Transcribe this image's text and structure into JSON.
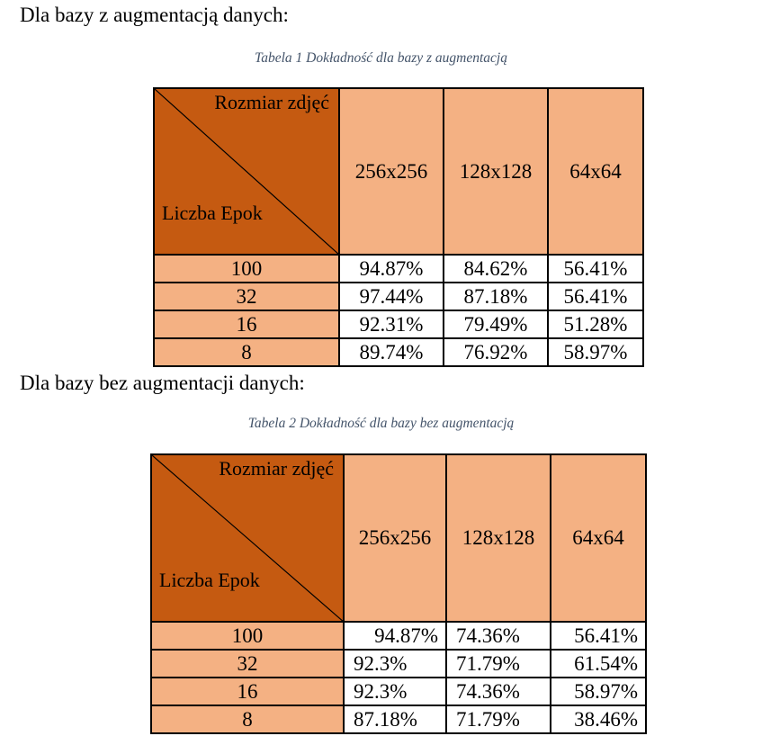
{
  "sections": [
    {
      "heading": "Dla bazy z augmentacją danych:",
      "caption": "Tabela 1 Dokładność dla bazy z augmentacją",
      "table": {
        "corner_top": "Rozmiar zdjęć",
        "corner_bottom": "Liczba Epok",
        "columns": [
          "256x256",
          "128x128",
          "64x64"
        ],
        "rows": [
          {
            "epochs": "100",
            "values": [
              "94.87%",
              "84.62%",
              "56.41%"
            ]
          },
          {
            "epochs": "32",
            "values": [
              "97.44%",
              "87.18%",
              "56.41%"
            ]
          },
          {
            "epochs": "16",
            "values": [
              "92.31%",
              "79.49%",
              "51.28%"
            ]
          },
          {
            "epochs": "8",
            "values": [
              "89.74%",
              "76.92%",
              "58.97%"
            ]
          }
        ]
      }
    },
    {
      "heading": "Dla bazy bez augmentacji danych:",
      "caption": "Tabela 2 Dokładność dla bazy bez augmentacją",
      "table": {
        "corner_top": "Rozmiar zdjęć",
        "corner_bottom": "Liczba Epok",
        "columns": [
          "256x256",
          "128x128",
          "64x64"
        ],
        "rows": [
          {
            "epochs": "100",
            "values": [
              "94.87%",
              "74.36%",
              "56.41%"
            ]
          },
          {
            "epochs": "32",
            "values": [
              "92.3%",
              "71.79%",
              "61.54%"
            ]
          },
          {
            "epochs": "16",
            "values": [
              "92.3%",
              "74.36%",
              "58.97%"
            ]
          },
          {
            "epochs": "8",
            "values": [
              "87.18%",
              "71.79%",
              "38.46%"
            ]
          }
        ]
      }
    }
  ],
  "colors": {
    "corner_fill": "#c55a11",
    "header_fill": "#f4b183",
    "caption_text": "#44546a"
  }
}
